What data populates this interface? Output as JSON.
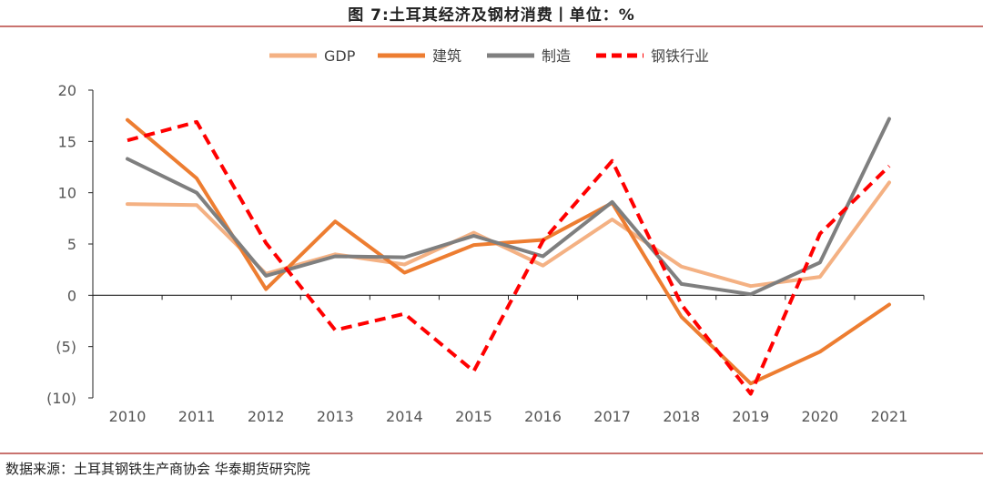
{
  "title": "图 7:土耳其经济及钢材消费丨单位：%",
  "source": "数据来源：土耳其钢铁生产商协会  华泰期货研究院",
  "colors": {
    "rule": "#c9736f",
    "axis": "#222222",
    "negative_tick": "#e03030"
  },
  "chart_data": {
    "type": "line",
    "title": "图 7:土耳其经济及钢材消费丨单位：%",
    "xlabel": "",
    "ylabel": "",
    "x": [
      "2010",
      "2011",
      "2012",
      "2013",
      "2014",
      "2015",
      "2016",
      "2017",
      "2018",
      "2019",
      "2020",
      "2021"
    ],
    "ylim": [
      -10,
      20
    ],
    "yticks": [
      20,
      15,
      10,
      5,
      0,
      -5,
      -10
    ],
    "ytick_labels": [
      "20",
      "15",
      "10",
      "5",
      "0",
      "(5)",
      "(10)"
    ],
    "grid": false,
    "legend_position": "top",
    "series": [
      {
        "name": "GDP",
        "color": "#f4b183",
        "dash": "solid",
        "values": [
          8.9,
          8.8,
          2.1,
          4.0,
          3.0,
          6.1,
          2.9,
          7.4,
          2.8,
          0.9,
          1.8,
          11.0
        ]
      },
      {
        "name": "建筑",
        "color": "#ed7d31",
        "dash": "solid",
        "values": [
          17.1,
          11.4,
          0.6,
          7.2,
          2.2,
          4.9,
          5.4,
          9.0,
          -2.1,
          -8.6,
          -5.5,
          -0.9
        ]
      },
      {
        "name": "制造",
        "color": "#7f7f7f",
        "dash": "solid",
        "values": [
          13.3,
          10.0,
          1.9,
          3.8,
          3.7,
          5.8,
          3.8,
          9.1,
          1.1,
          0.1,
          3.2,
          17.2
        ]
      },
      {
        "name": "钢铁行业",
        "color": "#ff0000",
        "dash": "dashed",
        "values": [
          15.1,
          16.9,
          5.1,
          -3.4,
          -1.8,
          -7.4,
          5.3,
          13.1,
          -0.9,
          -9.6,
          6.0,
          12.6
        ]
      }
    ]
  }
}
